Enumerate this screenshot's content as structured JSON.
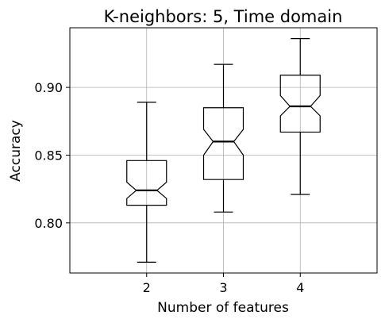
{
  "chart_data": {
    "type": "box",
    "title": "K-neighbors: 5, Time domain",
    "xlabel": "Number of features",
    "ylabel": "Accuracy",
    "notched": true,
    "grid": true,
    "ylim": [
      0.763,
      0.944
    ],
    "yticks": [
      0.8,
      0.85,
      0.9
    ],
    "ytick_labels": [
      "0.80",
      "0.85",
      "0.90"
    ],
    "categories": [
      "2",
      "3",
      "4"
    ],
    "boxes": [
      {
        "category": "2",
        "whisker_low": 0.771,
        "q1": 0.813,
        "median": 0.824,
        "q3": 0.846,
        "whisker_high": 0.889,
        "notch_low": 0.818,
        "notch_high": 0.83
      },
      {
        "category": "3",
        "whisker_low": 0.808,
        "q1": 0.832,
        "median": 0.86,
        "q3": 0.885,
        "whisker_high": 0.917,
        "notch_low": 0.85,
        "notch_high": 0.869
      },
      {
        "category": "4",
        "whisker_low": 0.821,
        "q1": 0.867,
        "median": 0.886,
        "q3": 0.909,
        "whisker_high": 0.936,
        "notch_low": 0.879,
        "notch_high": 0.894
      }
    ]
  }
}
